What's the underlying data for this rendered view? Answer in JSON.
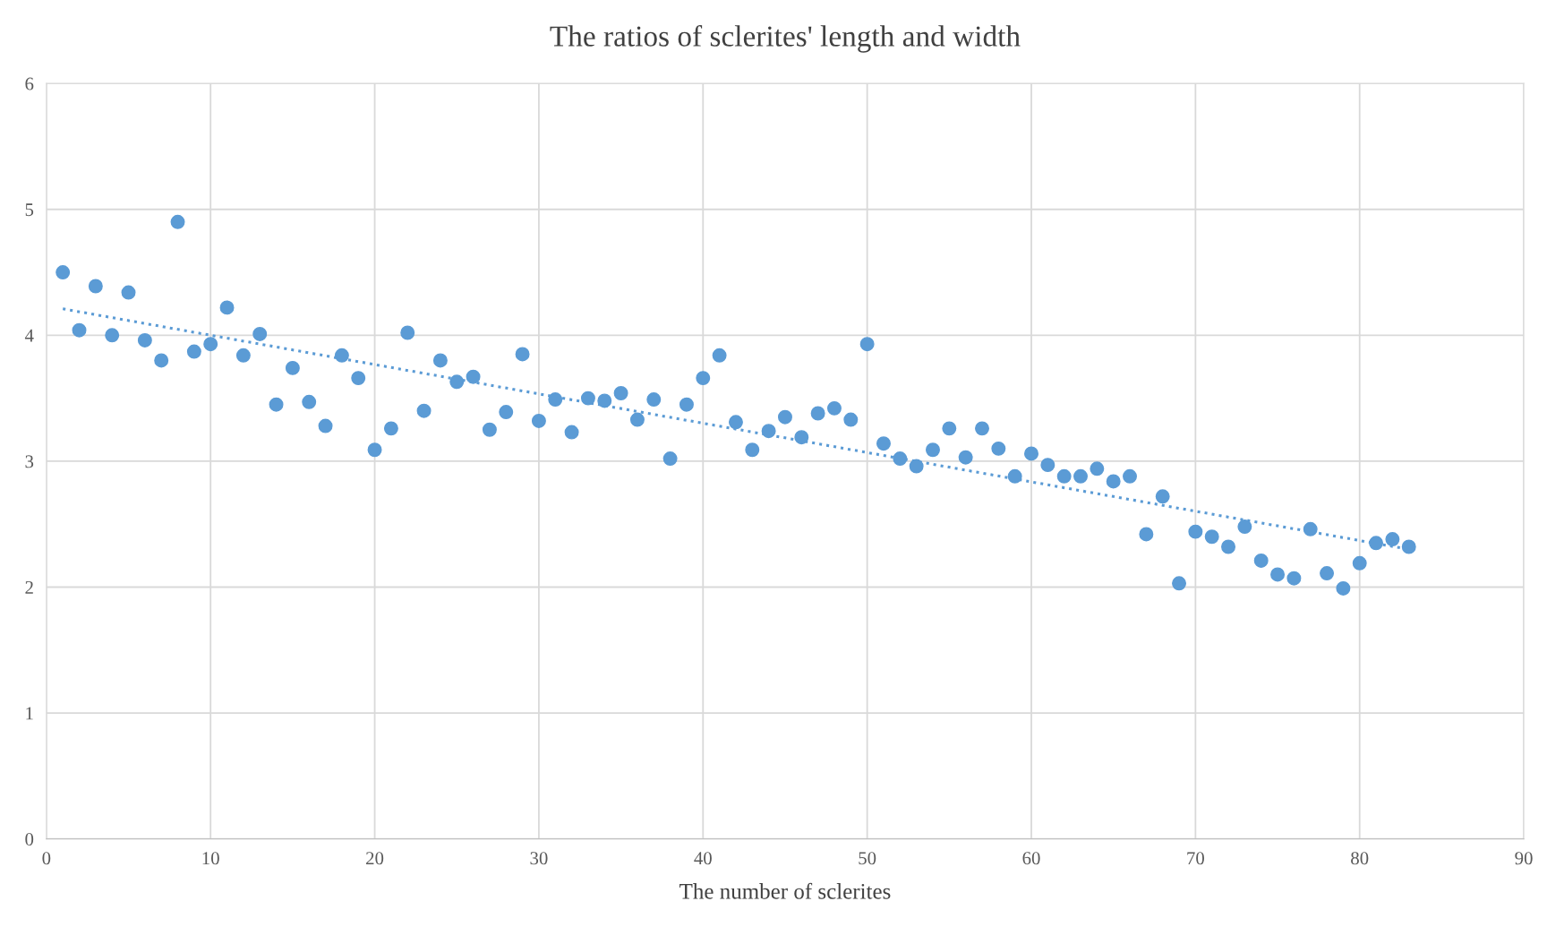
{
  "chart_data": {
    "type": "scatter",
    "title": "The ratios of sclerites' length and width",
    "xlabel": "The number of sclerites",
    "xlim": [
      0,
      90
    ],
    "xticks": [
      0,
      10,
      20,
      30,
      40,
      50,
      60,
      70,
      80,
      90
    ],
    "ylim": [
      0,
      6
    ],
    "yticks": [
      0,
      1,
      2,
      3,
      4,
      5,
      6
    ],
    "grid": true,
    "legend": false,
    "series": [
      {
        "color": "#5b9bd5",
        "marker": "circle",
        "x": [
          1,
          2,
          3,
          4,
          5,
          6,
          7,
          8,
          9,
          10,
          11,
          12,
          13,
          14,
          15,
          16,
          17,
          18,
          19,
          20,
          21,
          22,
          23,
          24,
          25,
          26,
          27,
          28,
          29,
          30,
          31,
          32,
          33,
          34,
          35,
          36,
          37,
          38,
          39,
          40,
          41,
          42,
          43,
          44,
          45,
          46,
          47,
          48,
          49,
          50,
          51,
          52,
          53,
          54,
          55,
          56,
          57,
          58,
          59,
          60,
          61,
          62,
          63,
          64,
          65,
          66,
          67,
          68,
          69,
          70,
          71,
          72,
          73,
          74,
          75,
          76,
          77,
          78,
          79,
          80,
          81,
          82,
          83
        ],
        "values": [
          4.5,
          4.04,
          4.39,
          4.0,
          4.34,
          3.96,
          3.8,
          4.9,
          3.87,
          3.93,
          4.22,
          3.84,
          4.01,
          3.45,
          3.74,
          3.47,
          3.28,
          3.84,
          3.66,
          3.09,
          3.26,
          4.02,
          3.4,
          3.8,
          3.63,
          3.67,
          3.25,
          3.39,
          3.85,
          3.32,
          3.49,
          3.23,
          3.5,
          3.48,
          3.54,
          3.33,
          3.49,
          3.02,
          3.45,
          3.66,
          3.84,
          3.31,
          3.09,
          3.24,
          3.35,
          3.19,
          3.38,
          3.42,
          3.33,
          3.93,
          3.14,
          3.02,
          2.96,
          3.09,
          3.26,
          3.03,
          3.26,
          3.1,
          2.88,
          3.06,
          2.97,
          2.88,
          2.88,
          2.94,
          2.84,
          2.88,
          2.42,
          2.72,
          2.03,
          2.44,
          2.4,
          2.32,
          2.48,
          2.21,
          2.1,
          2.07,
          2.46,
          2.11,
          1.99,
          2.19,
          2.35,
          2.38,
          2.32
        ]
      },
      {
        "type": "line",
        "color": "#5b9bd5",
        "marker": "none",
        "line_style": "dotted",
        "x": [
          1,
          83
        ],
        "values": [
          4.21,
          2.3
        ]
      }
    ]
  }
}
